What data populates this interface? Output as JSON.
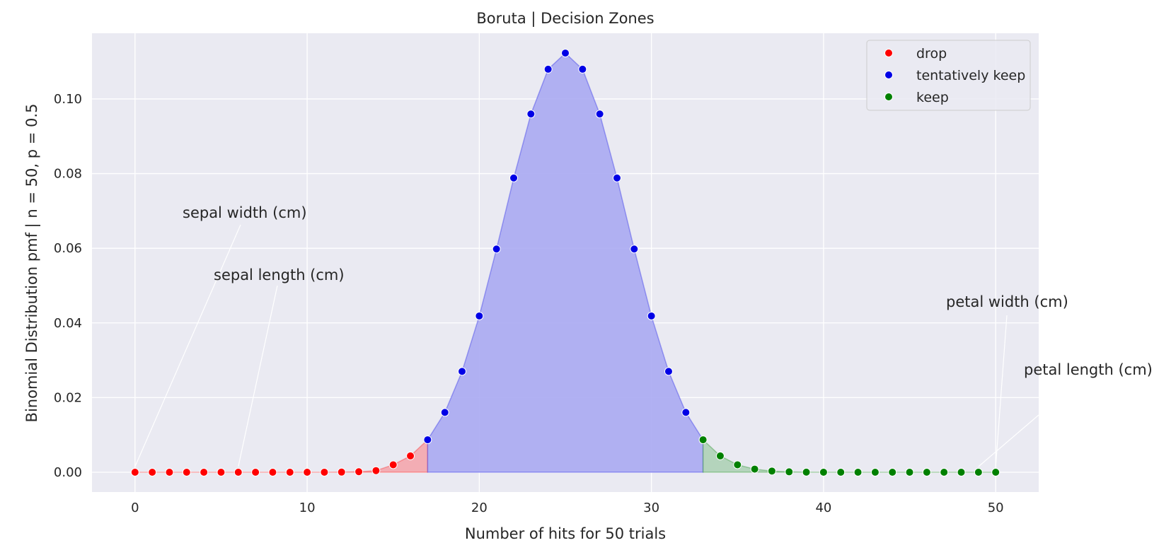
{
  "chart_data": {
    "type": "scatter",
    "title": "Boruta | Decision Zones",
    "xlabel": "Number of hits for 50 trials",
    "ylabel": "Binomial Distribution pmf | n = 50, p = 0.5",
    "xlim": [
      -2.5,
      52.5
    ],
    "ylim": [
      -0.0053,
      0.1176
    ],
    "xticks": [
      0,
      10,
      20,
      30,
      40,
      50
    ],
    "yticks": [
      0.0,
      0.02,
      0.04,
      0.06,
      0.08,
      0.1
    ],
    "xtick_labels": [
      "0",
      "10",
      "20",
      "30",
      "40",
      "50"
    ],
    "ytick_labels": [
      "0.00",
      "0.02",
      "0.04",
      "0.06",
      "0.08",
      "0.10"
    ],
    "grid": true,
    "legend_position": "top-right",
    "x": [
      0,
      1,
      2,
      3,
      4,
      5,
      6,
      7,
      8,
      9,
      10,
      11,
      12,
      13,
      14,
      15,
      16,
      17,
      18,
      19,
      20,
      21,
      22,
      23,
      24,
      25,
      26,
      27,
      28,
      29,
      30,
      31,
      32,
      33,
      34,
      35,
      36,
      37,
      38,
      39,
      40,
      41,
      42,
      43,
      44,
      45,
      46,
      47,
      48,
      49,
      50
    ],
    "y": [
      0.0,
      0.0,
      0.0,
      0.0,
      0.0,
      0.0,
      0.0,
      0.0,
      0.0,
      0.0,
      0.0,
      1e-05,
      4e-05,
      0.00014,
      0.00044,
      0.002,
      0.00437,
      0.0087,
      0.01603,
      0.02701,
      0.04186,
      0.0598,
      0.07883,
      0.09596,
      0.10796,
      0.11228,
      0.10796,
      0.09596,
      0.07883,
      0.0598,
      0.04186,
      0.02701,
      0.01603,
      0.0087,
      0.00437,
      0.002,
      0.00084,
      0.00032,
      0.00011,
      3e-05,
      1e-05,
      0.0,
      0.0,
      0.0,
      0.0,
      0.0,
      0.0,
      0.0,
      0.0,
      0.0,
      0.0
    ],
    "series": [
      {
        "name": "drop",
        "color": "#ff0000",
        "fill_color": "#f4a6ad",
        "x_range": [
          0,
          17
        ]
      },
      {
        "name": "tentatively keep",
        "color": "#0000e6",
        "fill_color": "#aaaaf2",
        "x_range": [
          17,
          33
        ]
      },
      {
        "name": "keep",
        "color": "#008000",
        "fill_color": "#aed2b6",
        "x_range": [
          33,
          50
        ]
      }
    ],
    "annotations": [
      {
        "text": "sepal width (cm)",
        "x": 0,
        "y": 0.0
      },
      {
        "text": "sepal length (cm)",
        "x": 6,
        "y": 0.0
      },
      {
        "text": "petal width (cm)",
        "x": 50,
        "y": 0.0
      },
      {
        "text": "petal length (cm)",
        "x": 49,
        "y": 0.0
      }
    ]
  }
}
